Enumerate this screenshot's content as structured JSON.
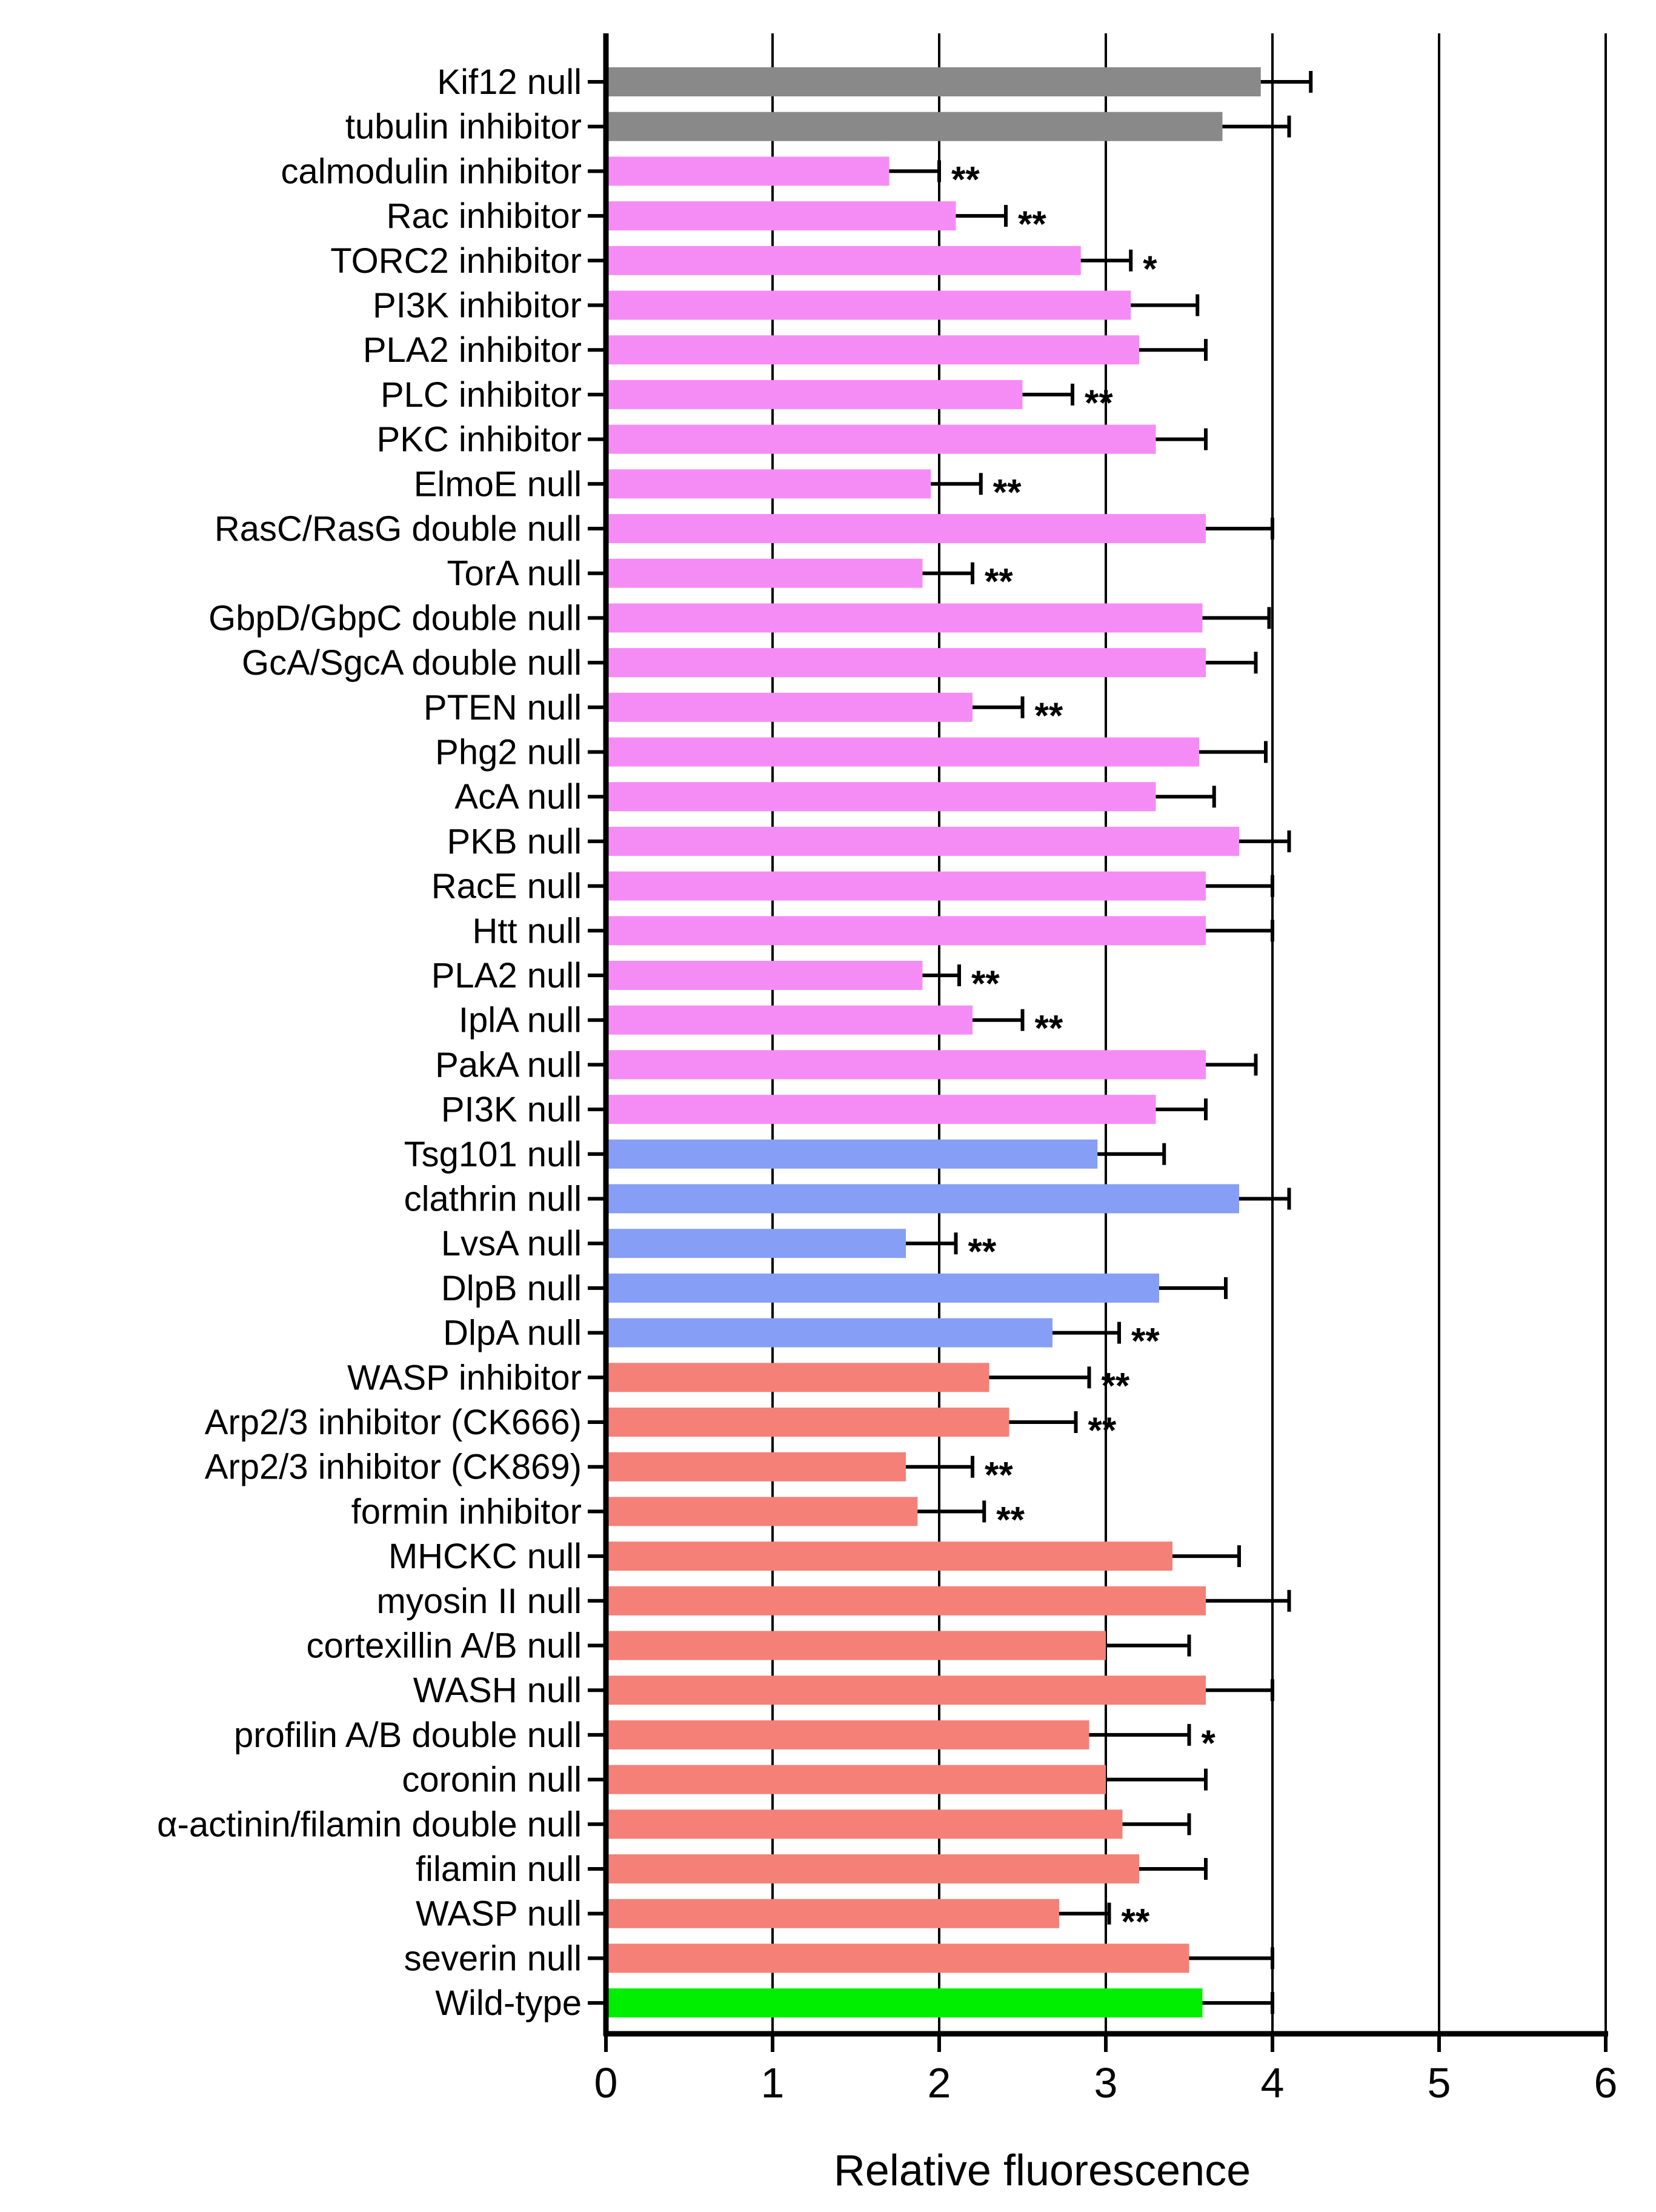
{
  "chart_data": {
    "type": "bar",
    "orientation": "horizontal",
    "title": "",
    "xlabel": "Relative  fluorescence",
    "ylabel": "",
    "xlim": [
      0,
      6
    ],
    "xticks": [
      "0",
      "1",
      "2",
      "3",
      "4",
      "5",
      "6"
    ],
    "grid": "vertical lines at 1-6",
    "colors": {
      "grey": "#898989",
      "pink": "#f58cf5",
      "blue": "#869ef5",
      "red": "#f58078",
      "green": "#00ee00"
    },
    "bars": [
      {
        "label": "Kif12 null",
        "value": 3.93,
        "error": 0.3,
        "color": "grey",
        "sig": ""
      },
      {
        "label": "tubulin inhibitor",
        "value": 3.7,
        "error": 0.4,
        "color": "grey",
        "sig": ""
      },
      {
        "label": "calmodulin inhibitor",
        "value": 1.7,
        "error": 0.3,
        "color": "pink",
        "sig": "**"
      },
      {
        "label": "Rac inhibitor",
        "value": 2.1,
        "error": 0.3,
        "color": "pink",
        "sig": "**"
      },
      {
        "label": "TORC2 inhibitor",
        "value": 2.85,
        "error": 0.3,
        "color": "pink",
        "sig": "*"
      },
      {
        "label": "PI3K inhibitor",
        "value": 3.15,
        "error": 0.4,
        "color": "pink",
        "sig": ""
      },
      {
        "label": "PLA2 inhibitor",
        "value": 3.2,
        "error": 0.4,
        "color": "pink",
        "sig": ""
      },
      {
        "label": "PLC inhibitor",
        "value": 2.5,
        "error": 0.3,
        "color": "pink",
        "sig": "**"
      },
      {
        "label": "PKC inhibitor",
        "value": 3.3,
        "error": 0.3,
        "color": "pink",
        "sig": ""
      },
      {
        "label": "ElmoE null",
        "value": 1.95,
        "error": 0.3,
        "color": "pink",
        "sig": "**"
      },
      {
        "label": "RasC/RasG double null",
        "value": 3.6,
        "error": 0.4,
        "color": "pink",
        "sig": ""
      },
      {
        "label": "TorA null",
        "value": 1.9,
        "error": 0.3,
        "color": "pink",
        "sig": "**"
      },
      {
        "label": "GbpD/GbpC double null",
        "value": 3.58,
        "error": 0.4,
        "color": "pink",
        "sig": ""
      },
      {
        "label": "GcA/SgcA double null",
        "value": 3.6,
        "error": 0.3,
        "color": "pink",
        "sig": ""
      },
      {
        "label": "PTEN null",
        "value": 2.2,
        "error": 0.3,
        "color": "pink",
        "sig": "**"
      },
      {
        "label": "Phg2 null",
        "value": 3.56,
        "error": 0.4,
        "color": "pink",
        "sig": ""
      },
      {
        "label": "AcA null",
        "value": 3.3,
        "error": 0.35,
        "color": "pink",
        "sig": ""
      },
      {
        "label": "PKB null",
        "value": 3.8,
        "error": 0.3,
        "color": "pink",
        "sig": ""
      },
      {
        "label": "RacE null",
        "value": 3.6,
        "error": 0.4,
        "color": "pink",
        "sig": ""
      },
      {
        "label": "Htt null",
        "value": 3.6,
        "error": 0.4,
        "color": "pink",
        "sig": ""
      },
      {
        "label": "PLA2 null",
        "value": 1.9,
        "error": 0.22,
        "color": "pink",
        "sig": "**"
      },
      {
        "label": "IplA null",
        "value": 2.2,
        "error": 0.3,
        "color": "pink",
        "sig": "**"
      },
      {
        "label": "PakA null",
        "value": 3.6,
        "error": 0.3,
        "color": "pink",
        "sig": ""
      },
      {
        "label": "PI3K null",
        "value": 3.3,
        "error": 0.3,
        "color": "pink",
        "sig": ""
      },
      {
        "label": "Tsg101 null",
        "value": 2.95,
        "error": 0.4,
        "color": "blue",
        "sig": ""
      },
      {
        "label": "clathrin null",
        "value": 3.8,
        "error": 0.3,
        "color": "blue",
        "sig": ""
      },
      {
        "label": "LvsA null",
        "value": 1.8,
        "error": 0.3,
        "color": "blue",
        "sig": "**"
      },
      {
        "label": "DlpB null",
        "value": 3.32,
        "error": 0.4,
        "color": "blue",
        "sig": ""
      },
      {
        "label": "DlpA null",
        "value": 2.68,
        "error": 0.4,
        "color": "blue",
        "sig": "**"
      },
      {
        "label": "WASP inhibitor",
        "value": 2.3,
        "error": 0.6,
        "color": "red",
        "sig": "**"
      },
      {
        "label": "Arp2/3 inhibitor (CK666)",
        "value": 2.42,
        "error": 0.4,
        "color": "red",
        "sig": "**"
      },
      {
        "label": "Arp2/3 inhibitor (CK869)",
        "value": 1.8,
        "error": 0.4,
        "color": "red",
        "sig": "**"
      },
      {
        "label": "formin inhibitor",
        "value": 1.87,
        "error": 0.4,
        "color": "red",
        "sig": "**"
      },
      {
        "label": "MHCKC null",
        "value": 3.4,
        "error": 0.4,
        "color": "red",
        "sig": ""
      },
      {
        "label": "myosin II null",
        "value": 3.6,
        "error": 0.5,
        "color": "red",
        "sig": ""
      },
      {
        "label": "cortexillin A/B null",
        "value": 3.0,
        "error": 0.5,
        "color": "red",
        "sig": ""
      },
      {
        "label": "WASH null",
        "value": 3.6,
        "error": 0.4,
        "color": "red",
        "sig": ""
      },
      {
        "label": "profilin A/B double null",
        "value": 2.9,
        "error": 0.6,
        "color": "red",
        "sig": "*"
      },
      {
        "label": "coronin null",
        "value": 3.0,
        "error": 0.6,
        "color": "red",
        "sig": ""
      },
      {
        "label": "α-actinin/filamin double null",
        "value": 3.1,
        "error": 0.4,
        "color": "red",
        "sig": ""
      },
      {
        "label": "filamin null",
        "value": 3.2,
        "error": 0.4,
        "color": "red",
        "sig": ""
      },
      {
        "label": "WASP null",
        "value": 2.72,
        "error": 0.3,
        "color": "red",
        "sig": "**"
      },
      {
        "label": "severin null",
        "value": 3.5,
        "error": 0.5,
        "color": "red",
        "sig": ""
      },
      {
        "label": "Wild-type",
        "value": 3.58,
        "error": 0.42,
        "color": "green",
        "sig": ""
      }
    ]
  }
}
